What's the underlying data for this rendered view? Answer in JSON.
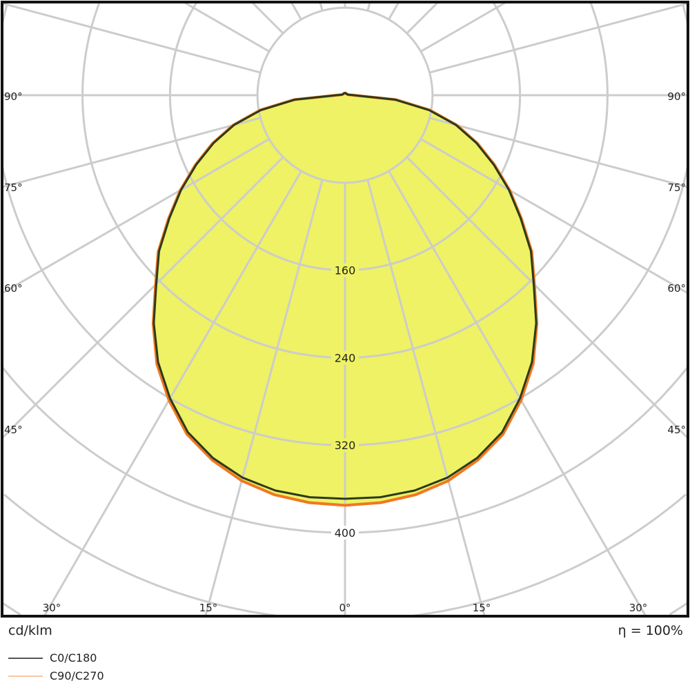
{
  "chart_data": {
    "type": "polar",
    "unit_label": "cd/klm",
    "efficiency_label": "η = 100%",
    "radial_ticks": [
      160,
      240,
      320,
      400
    ],
    "radial_grid": [
      80,
      160,
      240,
      320,
      400,
      480,
      560,
      640
    ],
    "angle_grid_step_deg": 15,
    "angle_labels": {
      "bottom": [
        "30°",
        "15°",
        "0°",
        "15°",
        "30°"
      ],
      "sides": [
        "90°",
        "75°",
        "60°",
        "45°"
      ]
    },
    "angles_deg": [
      0,
      5,
      10,
      15,
      20,
      25,
      30,
      35,
      40,
      45,
      50,
      55,
      60,
      65,
      70,
      75,
      80,
      85,
      90,
      100,
      120,
      150,
      180
    ],
    "series": [
      {
        "name": "C0/C180",
        "color": "#2b3a1c",
        "legend_color": "#555555",
        "values": [
          369,
          369,
          367,
          362,
          353,
          340,
          320,
          298,
          272,
          244,
          222,
          196,
          173,
          150,
          128,
          105,
          78,
          46,
          8,
          3,
          2,
          2,
          2
        ]
      },
      {
        "name": "C90/C270",
        "color": "#f07820",
        "legend_color": "#f8c6a4",
        "values": [
          375,
          374,
          371,
          365,
          355,
          342,
          322,
          300,
          273,
          245,
          223,
          197,
          174,
          151,
          129,
          106,
          79,
          47,
          8,
          3,
          2,
          2,
          2
        ]
      }
    ],
    "fill_color": "#eef264",
    "grid_color": "#cccccc"
  }
}
